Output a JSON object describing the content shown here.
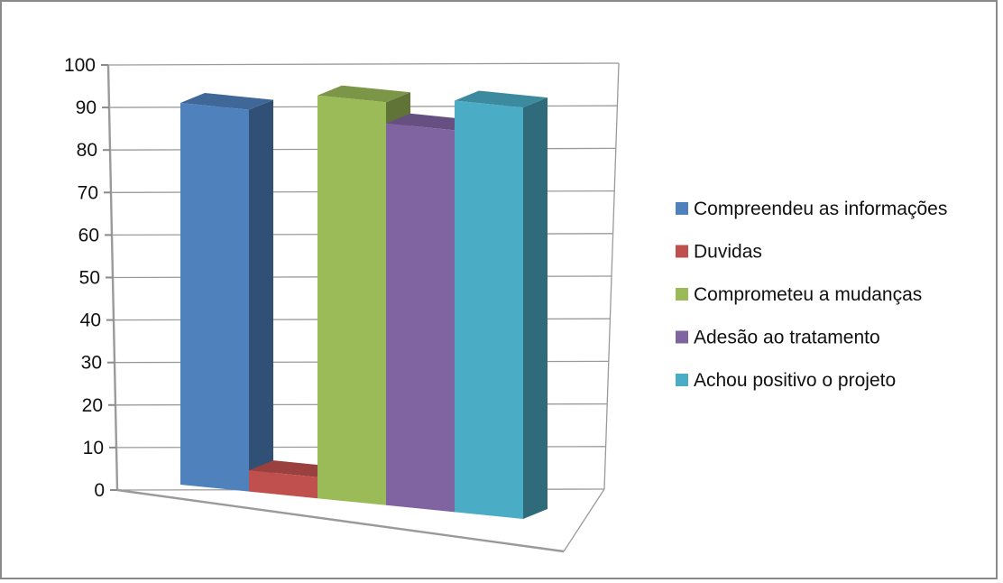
{
  "chart_data": {
    "type": "bar",
    "variant": "3d-column",
    "title": "",
    "xlabel": "",
    "ylabel": "",
    "ylim": [
      0,
      100
    ],
    "yticks": [
      0,
      10,
      20,
      30,
      40,
      50,
      60,
      70,
      80,
      90,
      100
    ],
    "grid": true,
    "legend": "right",
    "series": [
      {
        "name": "Compreendeu as informações",
        "value": 90,
        "color": "#4f81bd"
      },
      {
        "name": "Duvidas",
        "value": 5,
        "color": "#c0504d"
      },
      {
        "name": "Comprometeu a mudanças",
        "value": 95,
        "color": "#9bbb59"
      },
      {
        "name": "Adesão ao tratamento",
        "value": 90,
        "color": "#8064a2"
      },
      {
        "name": "Achou positivo o projeto",
        "value": 97,
        "color": "#4bacc6"
      }
    ]
  }
}
